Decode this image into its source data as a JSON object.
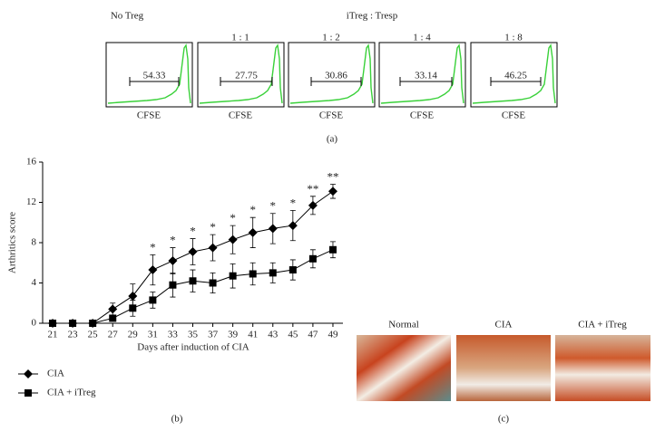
{
  "panel_a": {
    "panel_label": "(a)",
    "group_title": "iTreg : Tresp",
    "plots": [
      {
        "title": "No Treg",
        "gate": "54.33",
        "axis": "CFSE"
      },
      {
        "title": "1 : 1",
        "gate": "27.75",
        "axis": "CFSE"
      },
      {
        "title": "1 : 2",
        "gate": "30.86",
        "axis": "CFSE"
      },
      {
        "title": "1 : 4",
        "gate": "33.14",
        "axis": "CFSE"
      },
      {
        "title": "1 : 8",
        "gate": "46.25",
        "axis": "CFSE"
      }
    ]
  },
  "chart_data": {
    "type": "line",
    "panel_label": "(b)",
    "x_label": "Days after induction of CIA",
    "y_label": "Arthritics score",
    "x": [
      21,
      23,
      25,
      27,
      29,
      31,
      33,
      35,
      37,
      39,
      41,
      43,
      45,
      47,
      49
    ],
    "xlim": [
      20,
      50
    ],
    "xticks": [
      21,
      23,
      25,
      27,
      29,
      31,
      33,
      35,
      37,
      39,
      41,
      43,
      45,
      47,
      49
    ],
    "ylim": [
      0,
      16
    ],
    "yticks": [
      0,
      4,
      8,
      12,
      16
    ],
    "series": [
      {
        "name": "CIA",
        "marker": "diamond",
        "color": "#000000",
        "values": [
          0,
          0,
          0,
          1.4,
          2.7,
          5.3,
          6.2,
          7.1,
          7.5,
          8.3,
          9.0,
          9.4,
          9.7,
          11.7,
          13.1
        ],
        "errors": [
          0,
          0,
          0,
          0.6,
          1.2,
          1.5,
          1.3,
          1.3,
          1.3,
          1.4,
          1.5,
          1.5,
          1.5,
          0.9,
          0.7
        ]
      },
      {
        "name": "CIA + iTreg",
        "marker": "square",
        "color": "#000000",
        "values": [
          0,
          0,
          0,
          0.5,
          1.5,
          2.3,
          3.8,
          4.2,
          4.0,
          4.7,
          4.9,
          5.0,
          5.3,
          6.4,
          7.3
        ],
        "errors": [
          0,
          0,
          0,
          0.3,
          0.8,
          0.8,
          1.2,
          1.1,
          1.0,
          1.2,
          1.1,
          1.0,
          1.0,
          0.9,
          0.8
        ]
      }
    ],
    "significance": [
      null,
      null,
      null,
      null,
      null,
      "*",
      "*",
      "*",
      "*",
      "*",
      "*",
      "*",
      "*",
      "**",
      "**"
    ]
  },
  "panel_c": {
    "panel_label": "(c)",
    "images": [
      {
        "title": "Normal"
      },
      {
        "title": "CIA"
      },
      {
        "title": "CIA + iTreg"
      }
    ]
  }
}
